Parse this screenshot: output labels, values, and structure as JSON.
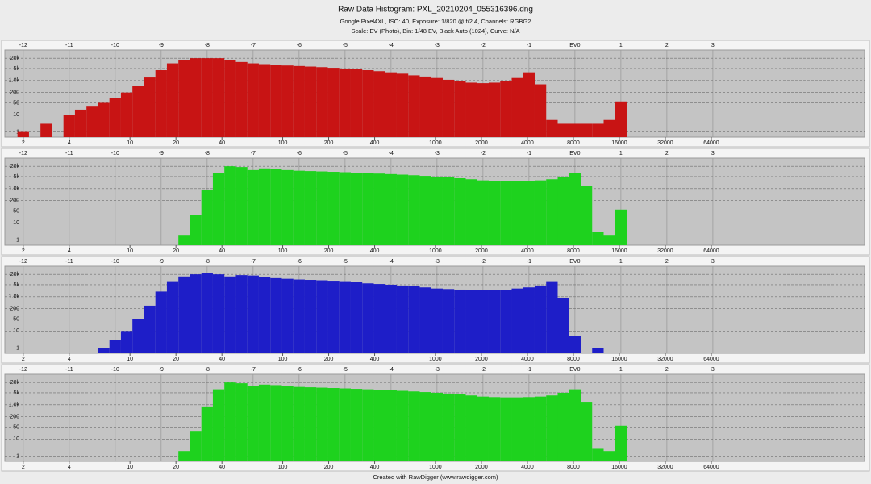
{
  "title": "Raw Data Histogram: PXL_20210204_055316396.dng",
  "subtitle_lines": [
    "Google Pixel4XL, ISO: 40, Exposure: 1/820 @ f/2.4, Channels: RGBG2",
    "Scale: EV (Photo), Bin: 1/48 EV, Black Auto (1024), Curve: N/A"
  ],
  "footer": "Created with RawDigger (www.rawdigger.com)",
  "chart_data": [
    {
      "type": "bar",
      "color": "#c81414",
      "ylog": true,
      "x2log": true,
      "grid": true,
      "xlim": [
        -12.4,
        6.3
      ],
      "xticks": [
        -12,
        -11,
        -10,
        -9,
        -8,
        -7,
        -6,
        -5,
        -4,
        -3,
        -2,
        -1,
        {
          "value": 0,
          "label": "EV0"
        },
        1,
        2,
        3
      ],
      "x2lim": [
        1.516,
        645000
      ],
      "x2ticks": [
        2,
        4,
        10,
        20,
        40,
        100,
        200,
        400,
        1000,
        2000,
        4000,
        8000,
        16000,
        32000,
        64000
      ],
      "ylim": [
        0.5,
        60000
      ],
      "yticks": [
        1,
        10,
        50,
        200,
        {
          "value": 1000,
          "label": "1.0k"
        },
        {
          "value": 5000,
          "label": "5k"
        },
        {
          "value": 20000,
          "label": "20k"
        }
      ],
      "x": [
        -12,
        -11.75,
        -11.5,
        -11.25,
        -11,
        -10.75,
        -10.5,
        -10.25,
        -10,
        -9.75,
        -9.5,
        -9.25,
        -9,
        -8.75,
        -8.5,
        -8.25,
        -8,
        -7.75,
        -7.5,
        -7.25,
        -7,
        -6.75,
        -6.5,
        -6.25,
        -6,
        -5.75,
        -5.5,
        -5.25,
        -5,
        -4.75,
        -4.5,
        -4.25,
        -4,
        -3.75,
        -3.5,
        -3.25,
        -3,
        -2.75,
        -2.5,
        -2.25,
        -2,
        -1.75,
        -1.5,
        -1.25,
        -1,
        -0.75,
        -0.5,
        -0.25,
        0,
        0.25,
        0.5,
        0.75,
        1
      ],
      "values": [
        1,
        null,
        3,
        null,
        10,
        20,
        30,
        50,
        100,
        200,
        500,
        1500,
        4000,
        10000,
        16000,
        20000,
        20000,
        20000,
        16000,
        12000,
        10000,
        9000,
        8000,
        7500,
        7000,
        6500,
        6000,
        5500,
        5000,
        4500,
        4000,
        3500,
        3000,
        2500,
        2000,
        1700,
        1400,
        1100,
        900,
        750,
        700,
        750,
        900,
        1400,
        3000,
        600,
        5,
        3,
        3,
        3,
        3,
        5,
        60
      ]
    },
    {
      "type": "bar",
      "color": "#1ed21e",
      "ylog": true,
      "x2log": true,
      "grid": true,
      "xlim": [
        -12.4,
        6.3
      ],
      "xticks": [
        -12,
        -11,
        -10,
        -9,
        -8,
        -7,
        -6,
        -5,
        -4,
        -3,
        -2,
        -1,
        {
          "value": 0,
          "label": "EV0"
        },
        1,
        2,
        3
      ],
      "x2lim": [
        1.516,
        645000
      ],
      "x2ticks": [
        2,
        4,
        10,
        20,
        40,
        100,
        200,
        400,
        1000,
        2000,
        4000,
        8000,
        16000,
        32000,
        64000
      ],
      "ylim": [
        0.5,
        60000
      ],
      "yticks": [
        1,
        10,
        50,
        200,
        {
          "value": 1000,
          "label": "1.0k"
        },
        {
          "value": 5000,
          "label": "5k"
        },
        {
          "value": 20000,
          "label": "20k"
        }
      ],
      "x": [
        -12,
        -11.75,
        -11.5,
        -11.25,
        -11,
        -10.75,
        -10.5,
        -10.25,
        -10,
        -9.75,
        -9.5,
        -9.25,
        -9,
        -8.75,
        -8.5,
        -8.25,
        -8,
        -7.75,
        -7.5,
        -7.25,
        -7,
        -6.75,
        -6.5,
        -6.25,
        -6,
        -5.75,
        -5.5,
        -5.25,
        -5,
        -4.75,
        -4.5,
        -4.25,
        -4,
        -3.75,
        -3.5,
        -3.25,
        -3,
        -2.75,
        -2.5,
        -2.25,
        -2,
        -1.75,
        -1.5,
        -1.25,
        -1,
        -0.75,
        -0.5,
        -0.25,
        0,
        0.25,
        0.5,
        0.75,
        1
      ],
      "values": [
        null,
        null,
        null,
        null,
        null,
        null,
        null,
        null,
        null,
        null,
        null,
        null,
        null,
        null,
        2,
        30,
        800,
        8000,
        20000,
        18000,
        12000,
        15000,
        14000,
        12000,
        11000,
        10500,
        10000,
        9500,
        9000,
        8500,
        8000,
        7500,
        7000,
        6500,
        6000,
        5500,
        5000,
        4500,
        4000,
        3500,
        3000,
        2800,
        2700,
        2700,
        2800,
        3000,
        3500,
        5000,
        8000,
        1500,
        3,
        2,
        60
      ]
    },
    {
      "type": "bar",
      "color": "#1e1ec8",
      "ylog": true,
      "x2log": true,
      "grid": true,
      "xlim": [
        -12.4,
        6.3
      ],
      "xticks": [
        -12,
        -11,
        -10,
        -9,
        -8,
        -7,
        -6,
        -5,
        -4,
        -3,
        -2,
        -1,
        {
          "value": 0,
          "label": "EV0"
        },
        1,
        2,
        3
      ],
      "x2lim": [
        1.516,
        645000
      ],
      "x2ticks": [
        2,
        4,
        10,
        20,
        40,
        100,
        200,
        400,
        1000,
        2000,
        4000,
        8000,
        16000,
        32000,
        64000
      ],
      "ylim": [
        0.5,
        60000
      ],
      "yticks": [
        1,
        10,
        50,
        200,
        {
          "value": 1000,
          "label": "1.0k"
        },
        {
          "value": 5000,
          "label": "5k"
        },
        {
          "value": 20000,
          "label": "20k"
        }
      ],
      "x": [
        -12,
        -11.75,
        -11.5,
        -11.25,
        -11,
        -10.75,
        -10.5,
        -10.25,
        -10,
        -9.75,
        -9.5,
        -9.25,
        -9,
        -8.75,
        -8.5,
        -8.25,
        -8,
        -7.75,
        -7.5,
        -7.25,
        -7,
        -6.75,
        -6.5,
        -6.25,
        -6,
        -5.75,
        -5.5,
        -5.25,
        -5,
        -4.75,
        -4.5,
        -4.25,
        -4,
        -3.75,
        -3.5,
        -3.25,
        -3,
        -2.75,
        -2.5,
        -2.25,
        -2,
        -1.75,
        -1.5,
        -1.25,
        -1,
        -0.75,
        -0.5,
        -0.25,
        0,
        0.25,
        0.5,
        0.75,
        1
      ],
      "values": [
        null,
        null,
        null,
        null,
        null,
        null,
        null,
        1,
        3,
        10,
        50,
        300,
        2000,
        8000,
        15000,
        20000,
        25000,
        20000,
        15000,
        18000,
        17000,
        14000,
        12000,
        11000,
        10000,
        9500,
        9000,
        8500,
        8000,
        7000,
        6000,
        5500,
        5000,
        4500,
        4000,
        3500,
        3000,
        2800,
        2600,
        2500,
        2400,
        2400,
        2500,
        3000,
        3500,
        4500,
        8000,
        800,
        5,
        null,
        1,
        null,
        null
      ]
    },
    {
      "type": "bar",
      "color": "#1ed21e",
      "ylog": true,
      "x2log": true,
      "grid": true,
      "xlim": [
        -12.4,
        6.3
      ],
      "xticks": [
        -12,
        -11,
        -10,
        -9,
        -8,
        -7,
        -6,
        -5,
        -4,
        -3,
        -2,
        -1,
        {
          "value": 0,
          "label": "EV0"
        },
        1,
        2,
        3
      ],
      "x2lim": [
        1.516,
        645000
      ],
      "x2ticks": [
        2,
        4,
        10,
        20,
        40,
        100,
        200,
        400,
        1000,
        2000,
        4000,
        8000,
        16000,
        32000,
        64000
      ],
      "ylim": [
        0.5,
        60000
      ],
      "yticks": [
        1,
        10,
        50,
        200,
        {
          "value": 1000,
          "label": "1.0k"
        },
        {
          "value": 5000,
          "label": "5k"
        },
        {
          "value": 20000,
          "label": "20k"
        }
      ],
      "x": [
        -12,
        -11.75,
        -11.5,
        -11.25,
        -11,
        -10.75,
        -10.5,
        -10.25,
        -10,
        -9.75,
        -9.5,
        -9.25,
        -9,
        -8.75,
        -8.5,
        -8.25,
        -8,
        -7.75,
        -7.5,
        -7.25,
        -7,
        -6.75,
        -6.5,
        -6.25,
        -6,
        -5.75,
        -5.5,
        -5.25,
        -5,
        -4.75,
        -4.5,
        -4.25,
        -4,
        -3.75,
        -3.5,
        -3.25,
        -3,
        -2.75,
        -2.5,
        -2.25,
        -2,
        -1.75,
        -1.5,
        -1.25,
        -1,
        -0.75,
        -0.5,
        -0.25,
        0,
        0.25,
        0.5,
        0.75,
        1
      ],
      "values": [
        null,
        null,
        null,
        null,
        null,
        null,
        null,
        null,
        null,
        null,
        null,
        null,
        null,
        null,
        2,
        30,
        800,
        8000,
        20000,
        18000,
        12000,
        15000,
        14000,
        12000,
        11000,
        10500,
        10000,
        9500,
        9000,
        8500,
        8000,
        7500,
        7000,
        6500,
        6000,
        5500,
        5000,
        4500,
        4000,
        3500,
        3000,
        2800,
        2700,
        2700,
        2800,
        3000,
        3500,
        5000,
        8000,
        1500,
        3,
        2,
        60
      ]
    }
  ]
}
